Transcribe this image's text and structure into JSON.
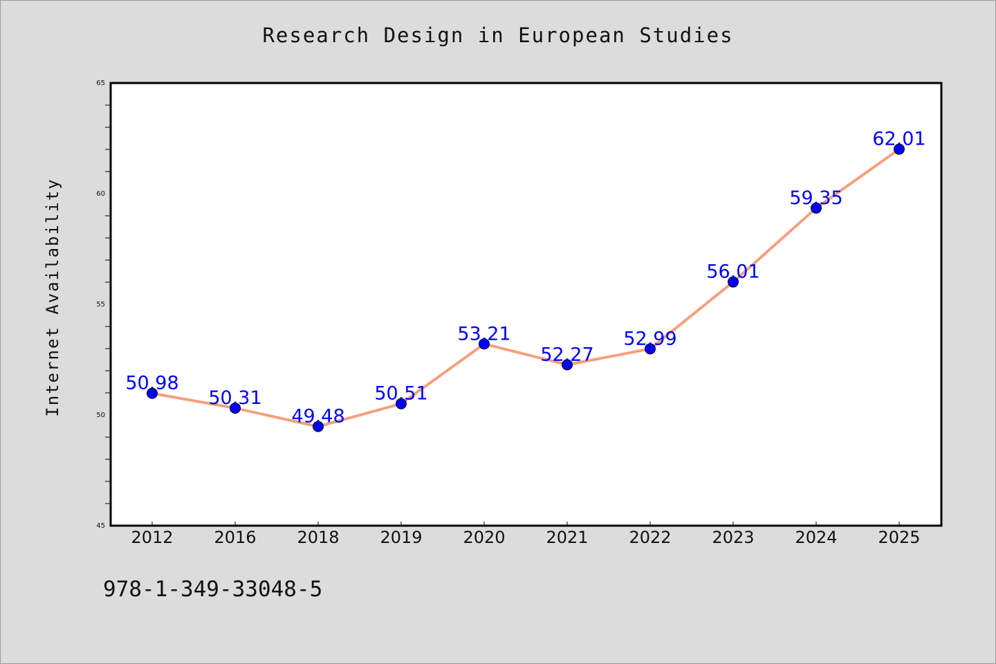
{
  "chart_data": {
    "type": "line",
    "title": "Research Design in European Studies",
    "ylabel": "Internet Availability",
    "xlabel": "",
    "categories": [
      "2012",
      "2016",
      "2018",
      "2019",
      "2020",
      "2021",
      "2022",
      "2023",
      "2024",
      "2025"
    ],
    "series": [
      {
        "values": [
          50.98,
          50.31,
          49.48,
          50.51,
          53.21,
          52.27,
          52.99,
          56.01,
          59.35,
          62.01
        ],
        "labels": [
          "50.98",
          "50.31",
          "49.48",
          "50.51",
          "53.21",
          "52.27",
          "52.99",
          "56.01",
          "59.35",
          "62.01"
        ]
      }
    ],
    "ylim": [
      45,
      65
    ],
    "yticks": [
      45,
      50,
      55,
      60,
      65
    ],
    "grid": false,
    "line_color": "#f4a07e",
    "marker_color": "#0000ff",
    "label_color": "#0000ff",
    "plot_background": "#ffffff",
    "figure_background": "#dcdcdc"
  },
  "footer": {
    "isbn": "978-1-349-33048-5"
  }
}
